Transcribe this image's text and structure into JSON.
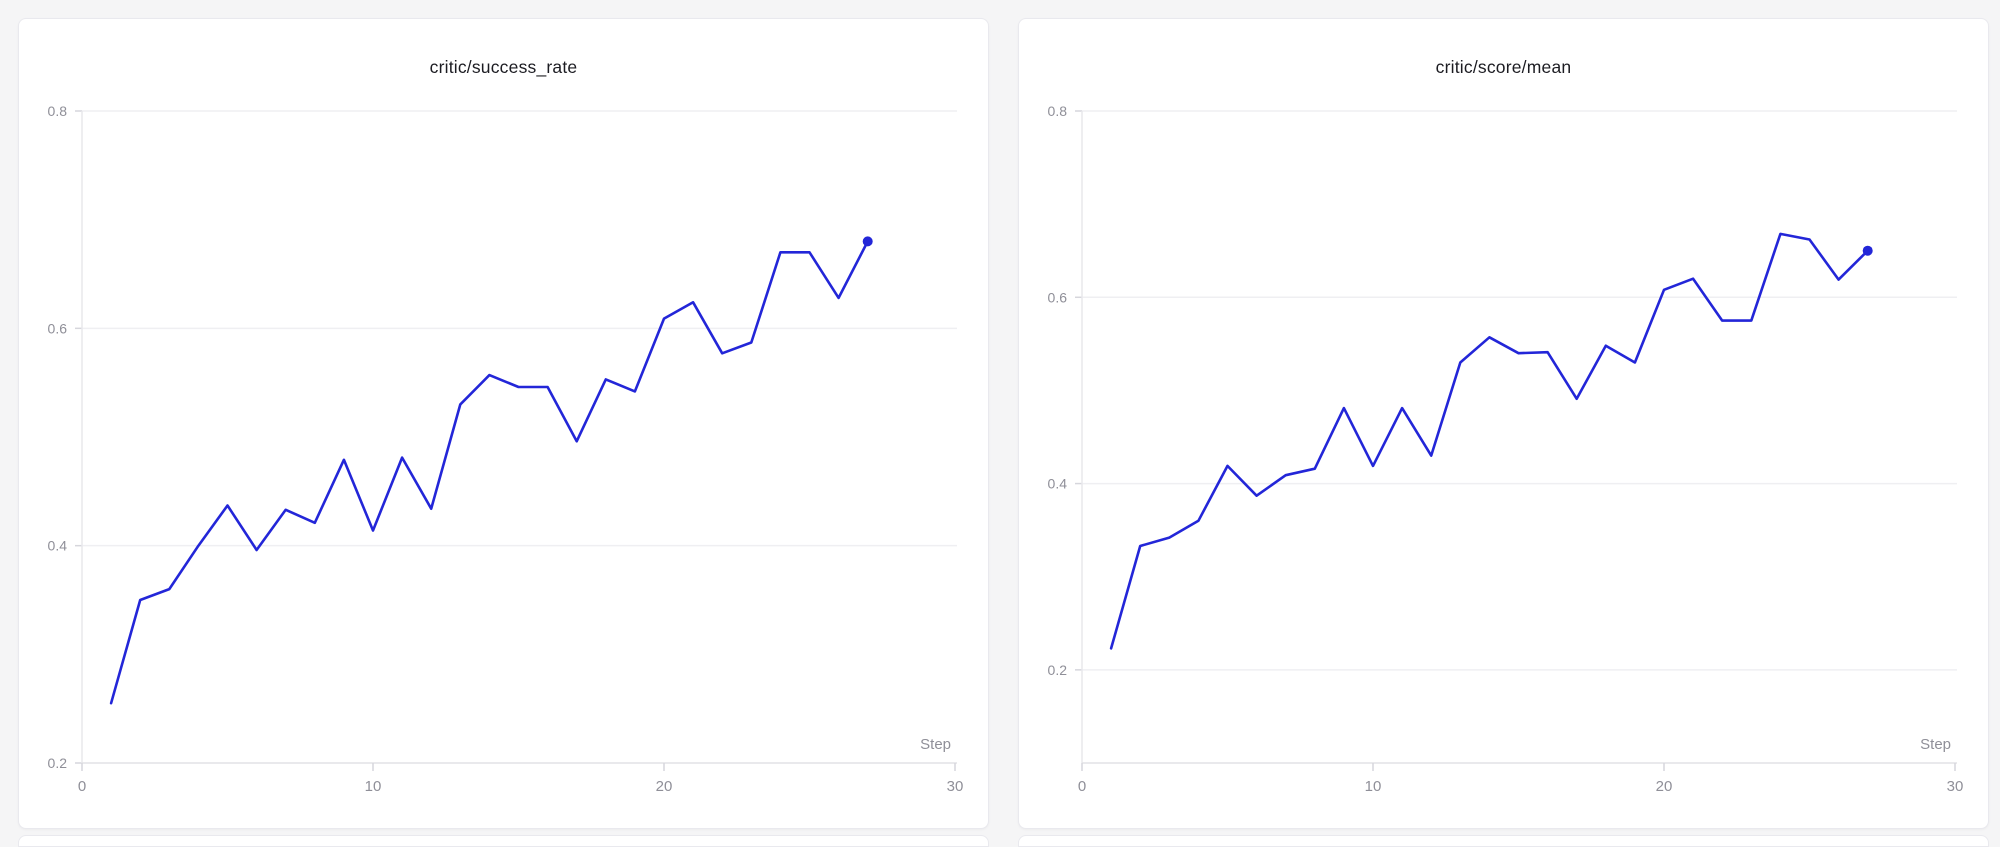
{
  "page": {
    "background_color": "#f5f5f6",
    "card_background": "#ffffff",
    "card_border_color": "#e9e9ee"
  },
  "colors": {
    "gridline": "#efeff2",
    "axis_line": "#e2e2e6",
    "y_axis_line": "#e8e8ec",
    "tick_mark": "#d6d6dc",
    "tick_label": "#8f8f98",
    "title_text": "#1c1c22"
  },
  "chart_data": [
    {
      "type": "line",
      "title": "critic/success_rate",
      "xlabel": "Step",
      "ylabel": "",
      "x": [
        1,
        2,
        3,
        4,
        5,
        6,
        7,
        8,
        9,
        10,
        11,
        12,
        13,
        14,
        15,
        16,
        17,
        18,
        19,
        20,
        21,
        22,
        23,
        24,
        25,
        26,
        27
      ],
      "values": [
        0.255,
        0.35,
        0.36,
        0.4,
        0.437,
        0.396,
        0.433,
        0.421,
        0.479,
        0.414,
        0.481,
        0.434,
        0.53,
        0.557,
        0.546,
        0.546,
        0.496,
        0.553,
        0.542,
        0.609,
        0.624,
        0.577,
        0.587,
        0.67,
        0.67,
        0.628,
        0.68
      ],
      "xlim": [
        0,
        30
      ],
      "ylim": [
        0.2,
        0.8
      ],
      "xticks": [
        0,
        10,
        20,
        30
      ],
      "yticks": [
        0.2,
        0.4,
        0.6,
        0.8
      ],
      "grid": true,
      "legend": "none",
      "line_color": "#2326d8",
      "last_point_marker": true
    },
    {
      "type": "line",
      "title": "critic/score/mean",
      "xlabel": "Step",
      "ylabel": "",
      "x": [
        1,
        2,
        3,
        4,
        5,
        6,
        7,
        8,
        9,
        10,
        11,
        12,
        13,
        14,
        15,
        16,
        17,
        18,
        19,
        20,
        21,
        22,
        23,
        24,
        25,
        26,
        27
      ],
      "values": [
        0.223,
        0.333,
        0.342,
        0.36,
        0.419,
        0.387,
        0.409,
        0.416,
        0.481,
        0.419,
        0.481,
        0.43,
        0.53,
        0.557,
        0.54,
        0.541,
        0.491,
        0.548,
        0.53,
        0.608,
        0.62,
        0.575,
        0.575,
        0.668,
        0.662,
        0.619,
        0.65
      ],
      "xlim": [
        0,
        30
      ],
      "ylim": [
        0.1,
        0.8
      ],
      "xticks": [
        0,
        10,
        20,
        30
      ],
      "yticks": [
        0.2,
        0.4,
        0.6,
        0.8
      ],
      "grid": true,
      "legend": "none",
      "line_color": "#2326d8",
      "last_point_marker": true
    }
  ]
}
